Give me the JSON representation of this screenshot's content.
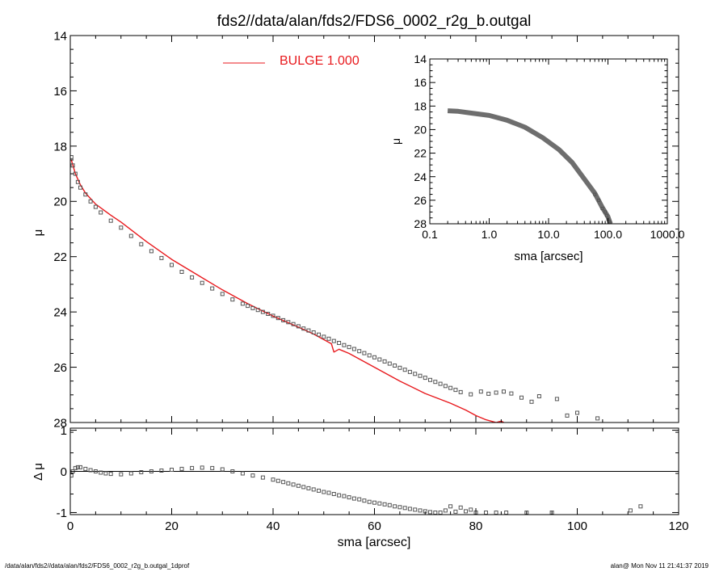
{
  "title": "fds2//data/alan/fds2/FDS6_0002_r2g_b.outgal",
  "footer": {
    "left": "/data/alan/fds2//data/alan/fds2/FDS6_0002_r2g_b.outgal_1dprof",
    "right": "alan@  Mon Nov 11 21:41:37 2019"
  },
  "colors": {
    "model": "#e8191d",
    "data": "#555555",
    "axis": "#000000"
  },
  "chart_data": [
    {
      "id": "main",
      "type": "line",
      "title": "fds2//data/alan/fds2/FDS6_0002_r2g_b.outgal",
      "xlabel": "",
      "ylabel": "μ",
      "xlim": [
        0,
        120
      ],
      "ylim": [
        28,
        14
      ],
      "y_inverted": true,
      "xticks": [
        0,
        20,
        40,
        60,
        80,
        100,
        120
      ],
      "yticks": [
        14,
        16,
        18,
        20,
        22,
        24,
        26,
        28
      ],
      "legend": {
        "placement": "top-center",
        "entries": [
          {
            "label": "BULGE  1.000",
            "color": "#e8191d"
          }
        ]
      },
      "series": [
        {
          "name": "BULGE  1.000",
          "style": "line",
          "color": "#e8191d",
          "x": [
            0.2,
            1,
            2,
            3,
            5,
            8,
            10,
            15,
            20,
            25,
            30,
            35,
            40,
            45,
            48,
            50,
            51.5,
            52,
            53,
            55,
            60,
            65,
            70,
            75,
            78,
            80,
            82,
            84,
            85,
            86
          ],
          "y": [
            18.5,
            19.0,
            19.4,
            19.7,
            20.1,
            20.5,
            20.75,
            21.45,
            22.1,
            22.65,
            23.2,
            23.7,
            24.15,
            24.55,
            24.8,
            25.0,
            25.15,
            25.45,
            25.35,
            25.5,
            26.0,
            26.5,
            26.95,
            27.3,
            27.55,
            27.75,
            27.9,
            28.0,
            27.95,
            28.05
          ]
        },
        {
          "name": "",
          "style": "markers",
          "color": "#555555",
          "x": [
            0.2,
            0.5,
            1,
            1.5,
            2,
            3,
            4,
            5,
            6,
            8,
            10,
            12,
            14,
            16,
            18,
            20,
            22,
            24,
            26,
            28,
            30,
            32,
            34,
            35,
            36,
            37,
            38,
            39,
            40,
            41,
            42,
            43,
            44,
            45,
            46,
            47,
            48,
            49,
            50,
            51,
            52,
            53,
            54,
            55,
            56,
            57,
            58,
            59,
            60,
            61,
            62,
            63,
            64,
            65,
            66,
            67,
            68,
            69,
            70,
            71,
            72,
            73,
            74,
            75,
            76,
            77,
            79,
            81,
            82.5,
            84,
            85.5,
            87,
            89,
            91,
            92.5,
            96,
            98,
            100,
            104
          ],
          "y": [
            18.4,
            18.7,
            19.0,
            19.3,
            19.5,
            19.75,
            20.0,
            20.2,
            20.4,
            20.7,
            20.95,
            21.25,
            21.55,
            21.8,
            22.05,
            22.3,
            22.55,
            22.75,
            22.95,
            23.15,
            23.35,
            23.55,
            23.7,
            23.78,
            23.86,
            23.93,
            24.0,
            24.07,
            24.14,
            24.22,
            24.3,
            24.37,
            24.44,
            24.52,
            24.6,
            24.67,
            24.74,
            24.82,
            24.9,
            24.97,
            25.05,
            25.12,
            25.2,
            25.27,
            25.34,
            25.42,
            25.49,
            25.57,
            25.64,
            25.72,
            25.79,
            25.87,
            25.94,
            26.02,
            26.09,
            26.17,
            26.24,
            26.31,
            26.38,
            26.46,
            26.53,
            26.6,
            26.68,
            26.75,
            26.82,
            26.9,
            26.98,
            26.88,
            26.96,
            26.92,
            26.88,
            26.95,
            27.1,
            27.25,
            27.05,
            27.15,
            27.75,
            27.65,
            27.85
          ]
        }
      ]
    },
    {
      "id": "inset",
      "type": "line",
      "xlabel": "sma [arcsec]",
      "ylabel": "μ",
      "xscale": "log",
      "xlim": [
        0.1,
        1000
      ],
      "ylim": [
        28,
        14
      ],
      "y_inverted": true,
      "xticks": [
        0.1,
        1,
        10,
        100,
        1000
      ],
      "xticklabels": [
        "0.1",
        "1.0",
        "10.0",
        "100.0",
        "1000.0"
      ],
      "yticks": [
        14,
        16,
        18,
        20,
        22,
        24,
        26,
        28
      ],
      "series": [
        {
          "name": "",
          "style": "thick-line",
          "color": "#555555",
          "x": [
            0.2,
            0.3,
            0.5,
            1,
            2,
            4,
            8,
            15,
            25,
            40,
            60,
            80,
            100,
            110
          ],
          "y": [
            18.4,
            18.45,
            18.6,
            18.8,
            19.2,
            19.8,
            20.7,
            21.7,
            22.8,
            24.2,
            25.4,
            26.6,
            27.4,
            28.0
          ]
        },
        {
          "name": "",
          "style": "markers",
          "color": "#555555",
          "x": [
            60,
            70,
            80,
            90,
            95,
            100,
            104,
            110
          ],
          "y": [
            25.5,
            26.0,
            26.7,
            27.0,
            27.3,
            27.6,
            27.8,
            27.9
          ]
        }
      ]
    },
    {
      "id": "residual",
      "type": "scatter",
      "xlabel": "sma [arcsec]",
      "ylabel": "Δ μ",
      "xlim": [
        0,
        120
      ],
      "ylim": [
        -1.05,
        1.05
      ],
      "xticks": [
        0,
        20,
        40,
        60,
        80,
        100,
        120
      ],
      "yticks": [
        -1,
        0,
        1
      ],
      "reference_line": 0,
      "series": [
        {
          "name": "",
          "style": "markers",
          "color": "#555555",
          "x": [
            0.2,
            0.5,
            1,
            1.5,
            2,
            3,
            4,
            5,
            6,
            7,
            8,
            10,
            12,
            14,
            16,
            18,
            20,
            22,
            24,
            26,
            28,
            30,
            32,
            34,
            36,
            38,
            40,
            41,
            42,
            43,
            44,
            45,
            46,
            47,
            48,
            49,
            50,
            51,
            52,
            53,
            54,
            55,
            56,
            57,
            58,
            59,
            60,
            61,
            62,
            63,
            64,
            65,
            66,
            67,
            68,
            69,
            70,
            71,
            72,
            73,
            74,
            75,
            76,
            77,
            78,
            79,
            80,
            82,
            84,
            86,
            90,
            95,
            110.5,
            112.5
          ],
          "y": [
            -0.1,
            0.0,
            0.08,
            0.1,
            0.1,
            0.06,
            0.03,
            0.0,
            -0.03,
            -0.05,
            -0.06,
            -0.07,
            -0.05,
            -0.02,
            0.0,
            0.02,
            0.04,
            0.06,
            0.08,
            0.09,
            0.08,
            0.05,
            0.0,
            -0.05,
            -0.1,
            -0.15,
            -0.2,
            -0.23,
            -0.26,
            -0.29,
            -0.32,
            -0.35,
            -0.38,
            -0.41,
            -0.44,
            -0.47,
            -0.5,
            -0.52,
            -0.55,
            -0.58,
            -0.6,
            -0.63,
            -0.66,
            -0.68,
            -0.71,
            -0.74,
            -0.76,
            -0.78,
            -0.8,
            -0.82,
            -0.85,
            -0.87,
            -0.89,
            -0.91,
            -0.93,
            -0.95,
            -0.97,
            -0.99,
            -1.0,
            -1.0,
            -0.95,
            -0.85,
            -0.98,
            -0.88,
            -0.97,
            -0.93,
            -1.0,
            -1.0,
            -1.0,
            -1.0,
            -1.0,
            -1.0,
            -0.95,
            -0.85
          ]
        }
      ]
    }
  ]
}
